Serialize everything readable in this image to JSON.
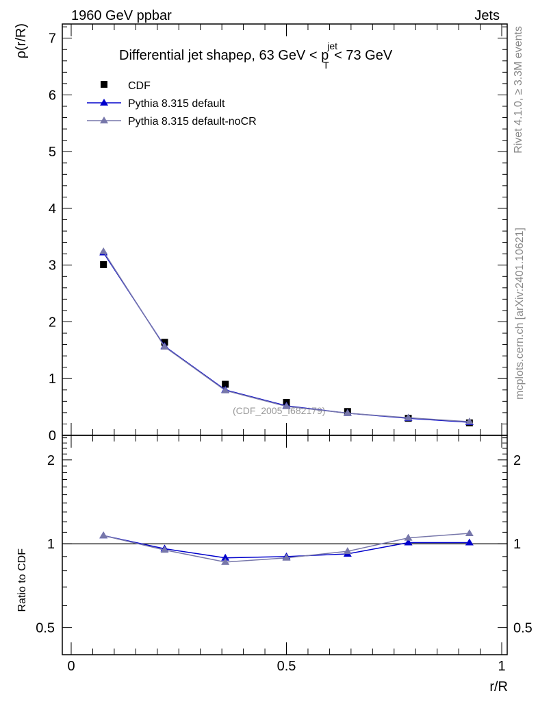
{
  "header": {
    "left": "1960 GeV ppbar",
    "right": "Jets"
  },
  "side_labels": {
    "rivet": "Rivet 4.1.0, ≥ 3.3M events",
    "mcplots": "mcplots.cern.ch [arXiv:2401.10621]"
  },
  "plot_title": {
    "main": "Differential jet shapeρ, 63 GeV < p",
    "sup": "jet",
    "sub": "T",
    "tail": " < 73 GeV"
  },
  "watermark": "(CDF_2005_I682179)",
  "legend": [
    {
      "label": "CDF",
      "marker": "square",
      "color": "#000000"
    },
    {
      "label": "Pythia 8.315 default",
      "marker": "triangle",
      "color": "#0000cc"
    },
    {
      "label": "Pythia 8.315 default-noCR",
      "marker": "triangle",
      "color": "#7777aa"
    }
  ],
  "chart_data": [
    {
      "type": "scatter",
      "panel": "main",
      "ylabel": "ρ(r/R)",
      "xlim": [
        0,
        1
      ],
      "ylim": [
        0,
        7.25
      ],
      "yticks": [
        0,
        1,
        2,
        3,
        4,
        5,
        6,
        7
      ],
      "x": [
        0.075,
        0.217,
        0.358,
        0.5,
        0.642,
        0.783,
        0.925
      ],
      "series": [
        {
          "name": "CDF",
          "color": "#000000",
          "marker": "square",
          "line": false,
          "values": [
            3.01,
            1.64,
            0.9,
            0.58,
            0.42,
            0.3,
            0.22
          ]
        },
        {
          "name": "Pythia 8.315 default",
          "color": "#0000cc",
          "marker": "triangle",
          "line": true,
          "values": [
            3.22,
            1.57,
            0.8,
            0.52,
            0.39,
            0.3,
            0.23
          ]
        },
        {
          "name": "Pythia 8.315 default-noCR",
          "color": "#7777aa",
          "marker": "triangle",
          "line": true,
          "values": [
            3.24,
            1.56,
            0.79,
            0.51,
            0.39,
            0.31,
            0.24
          ]
        }
      ]
    },
    {
      "type": "line",
      "panel": "ratio",
      "ylabel": "Ratio to CDF",
      "xlabel": "r/R",
      "xlim": [
        0,
        1
      ],
      "xticks": [
        0,
        0.5,
        1
      ],
      "xtick_labels": [
        "0",
        "0.5",
        "1"
      ],
      "ylim": [
        0.4,
        2.45
      ],
      "yticks": [
        0.5,
        1,
        2
      ],
      "ytick_labels": [
        "0.5",
        "1",
        "2"
      ],
      "reference": 1,
      "x": [
        0.075,
        0.217,
        0.358,
        0.5,
        0.642,
        0.783,
        0.925
      ],
      "series": [
        {
          "name": "Pythia 8.315 default",
          "color": "#0000cc",
          "marker": "triangle",
          "values": [
            1.07,
            0.96,
            0.89,
            0.9,
            0.92,
            1.01,
            1.01
          ]
        },
        {
          "name": "Pythia 8.315 default-noCR",
          "color": "#7777aa",
          "marker": "triangle",
          "values": [
            1.07,
            0.95,
            0.86,
            0.89,
            0.94,
            1.05,
            1.09
          ]
        }
      ]
    }
  ]
}
